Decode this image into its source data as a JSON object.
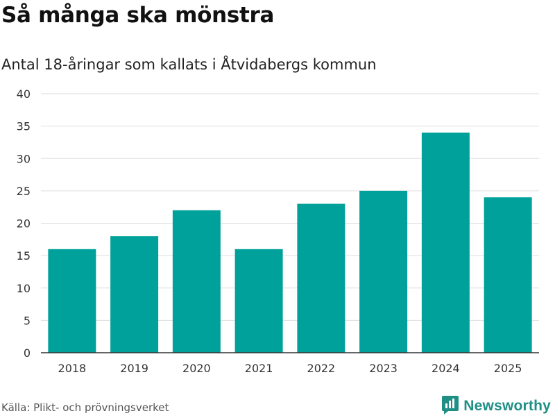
{
  "header": {
    "title": "Så många ska mönstra",
    "subtitle": "Antal 18-åringar som kallats i Åtvidabergs kommun"
  },
  "footer": {
    "source": "Källa: Plikt- och prövningsverket",
    "brand": "Newsworthy",
    "brand_icon": "newsworthy-logo-icon"
  },
  "colors": {
    "bar": "#00a19a",
    "grid": "#dddddd",
    "axis": "#333333",
    "brand": "#1f8f86"
  },
  "chart_data": {
    "type": "bar",
    "title": "Så många ska mönstra",
    "subtitle": "Antal 18-åringar som kallats i Åtvidabergs kommun",
    "xlabel": "",
    "ylabel": "",
    "categories": [
      "2018",
      "2019",
      "2020",
      "2021",
      "2022",
      "2023",
      "2024",
      "2025"
    ],
    "values": [
      16,
      18,
      22,
      16,
      23,
      25,
      34,
      24
    ],
    "ylim": [
      0,
      40
    ],
    "yticks": [
      0,
      5,
      10,
      15,
      20,
      25,
      30,
      35,
      40
    ],
    "grid": true,
    "legend": "none"
  }
}
